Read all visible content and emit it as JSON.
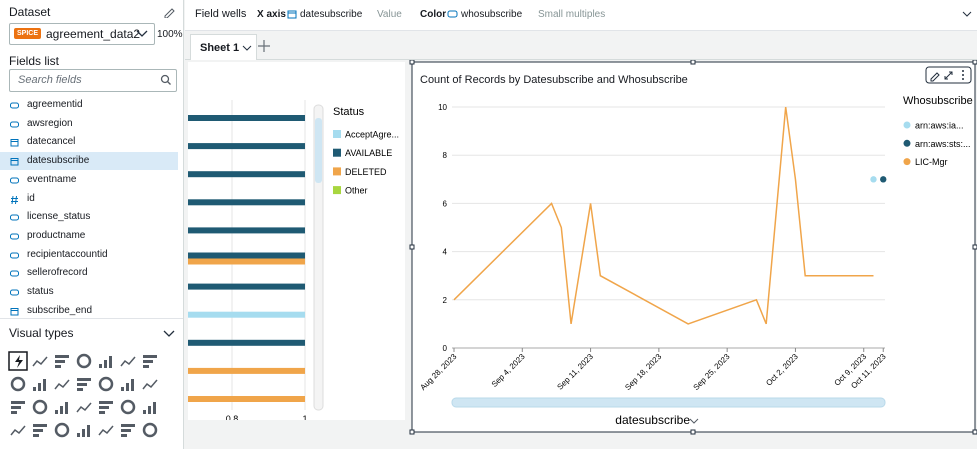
{
  "dataset": {
    "label": "Dataset",
    "badge": "SPICE",
    "name": "agreement_data2",
    "zoom": "100%"
  },
  "fields": {
    "label": "Fields list",
    "search_placeholder": "Search fields",
    "items": [
      {
        "name": "agreementid",
        "type": "text"
      },
      {
        "name": "awsregion",
        "type": "text"
      },
      {
        "name": "datecancel",
        "type": "date"
      },
      {
        "name": "datesubscribe",
        "type": "date",
        "selected": true
      },
      {
        "name": "eventname",
        "type": "text"
      },
      {
        "name": "id",
        "type": "number"
      },
      {
        "name": "license_status",
        "type": "text"
      },
      {
        "name": "productname",
        "type": "text"
      },
      {
        "name": "recipientaccountid",
        "type": "text"
      },
      {
        "name": "sellerofrecord",
        "type": "text"
      },
      {
        "name": "status",
        "type": "text"
      },
      {
        "name": "subscribe_end",
        "type": "date"
      }
    ]
  },
  "visual_types": {
    "label": "Visual types"
  },
  "field_wells": {
    "label": "Field wells",
    "x_axis": {
      "label": "X axis",
      "field": "datesubscribe"
    },
    "value": {
      "label": "Value"
    },
    "color": {
      "label": "Color",
      "field": "whosubscribe"
    },
    "small_multiples": {
      "label": "Small multiples"
    }
  },
  "sheets": {
    "tabs": [
      "Sheet 1"
    ]
  },
  "chart_data": [
    {
      "type": "bar",
      "orientation": "horizontal",
      "legend_title": "Status",
      "categories": [
        null,
        null,
        null,
        null,
        null,
        null,
        null,
        null,
        null,
        null,
        null
      ],
      "series": [
        {
          "name": "AcceptAgre...",
          "color": "#a6dcef",
          "values": [
            null,
            null,
            null,
            null,
            null,
            null,
            null,
            1,
            null,
            null,
            null
          ]
        },
        {
          "name": "AVAILABLE",
          "color": "#1f5a73",
          "values": [
            1,
            1,
            1,
            1,
            1,
            1,
            1,
            null,
            1,
            null,
            null
          ]
        },
        {
          "name": "DELETED",
          "color": "#f0a54a",
          "values": [
            null,
            null,
            null,
            null,
            null,
            1,
            null,
            null,
            null,
            1,
            1
          ]
        },
        {
          "name": "Other",
          "color": "#a8d63f",
          "values": [
            null,
            null,
            null,
            null,
            null,
            null,
            null,
            null,
            null,
            null,
            null
          ]
        }
      ],
      "xlim": [
        0,
        1
      ],
      "xticks": [
        0.8,
        1
      ],
      "grid": true
    },
    {
      "type": "line",
      "title": "Count of Records by Datesubscribe and Whosubscribe",
      "x_label": "datesubscribe",
      "legend_title": "Whosubscribe",
      "legend": "right",
      "xlim": [
        "2023-08-28",
        "2023-10-12"
      ],
      "xticks": [
        {
          "value": "2023-08-28",
          "label": "Aug 28, 2023"
        },
        {
          "value": "2023-09-04",
          "label": "Sep 4, 2023"
        },
        {
          "value": "2023-09-11",
          "label": "Sep 11, 2023"
        },
        {
          "value": "2023-09-18",
          "label": "Sep 18, 2023"
        },
        {
          "value": "2023-09-25",
          "label": "Sep 25, 2023"
        },
        {
          "value": "2023-10-02",
          "label": "Oct 2, 2023"
        },
        {
          "value": "2023-10-09",
          "label": "Oct 9, 2023"
        },
        {
          "value": "2023-10-11",
          "label": "Oct 11, 2023"
        }
      ],
      "ylim": [
        0,
        10.5
      ],
      "yticks": [
        0,
        2,
        4,
        6,
        8,
        10
      ],
      "grid": true,
      "series": [
        {
          "name": "arn:aws:ia...",
          "color": "#a6dcef",
          "x": [
            "2023-10-10"
          ],
          "values": [
            7
          ]
        },
        {
          "name": "arn:aws:sts:...",
          "color": "#1f5a73",
          "x": [
            "2023-10-11"
          ],
          "values": [
            7
          ]
        },
        {
          "name": "LIC-Mgr",
          "color": "#f0a54a",
          "x": [
            "2023-08-28",
            "2023-09-07",
            "2023-09-08",
            "2023-09-09",
            "2023-09-11",
            "2023-09-12",
            "2023-09-21",
            "2023-09-28",
            "2023-09-29",
            "2023-10-01",
            "2023-10-02",
            "2023-10-03",
            "2023-10-10"
          ],
          "values": [
            2,
            6,
            5,
            1,
            6,
            3,
            1,
            2,
            1,
            10,
            7,
            3,
            3
          ]
        }
      ]
    }
  ]
}
